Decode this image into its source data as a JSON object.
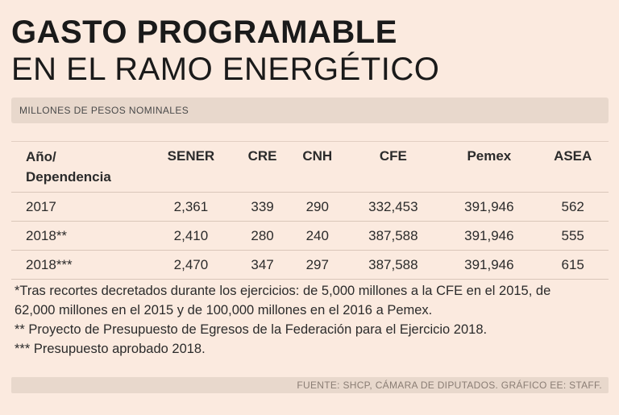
{
  "title_line1": "GASTO PROGRAMABLE",
  "title_line2": "EN EL RAMO ENERGÉTICO",
  "subtitle": "MILLONES DE PESOS NOMINALES",
  "chart_data": {
    "type": "table",
    "title": "GASTO PROGRAMABLE EN EL RAMO ENERGÉTICO",
    "units": "MILLONES DE PESOS NOMINALES",
    "header_first_line1": "Año/",
    "header_first_line2": "Dependencia",
    "columns": [
      "SENER",
      "CRE",
      "CNH",
      "CFE",
      "Pemex",
      "ASEA"
    ],
    "rows": [
      {
        "label": "2017",
        "values": [
          "2,361",
          "339",
          "290",
          "332,453",
          "391,946",
          "562"
        ]
      },
      {
        "label": "2018**",
        "values": [
          "2,410",
          "280",
          "240",
          "387,588",
          "391,946",
          "555"
        ]
      },
      {
        "label": "2018***",
        "values": [
          "2,470",
          "347",
          "297",
          "387,588",
          "391,946",
          "615"
        ]
      }
    ]
  },
  "notes": [
    "*Tras recortes decretados durante los ejercicios: de 5,000 millones a la CFE en el 2015, de",
    "62,000 millones en el 2015 y de 100,000 millones en el 2016 a Pemex.",
    "** Proyecto de Presupuesto de Egresos de la Federación para el Ejercicio 2018.",
    "*** Presupuesto aprobado 2018."
  ],
  "source": "FUENTE: SHCP, CÁMARA DE DIPUTADOS. GRÁFICO EE: STAFF."
}
